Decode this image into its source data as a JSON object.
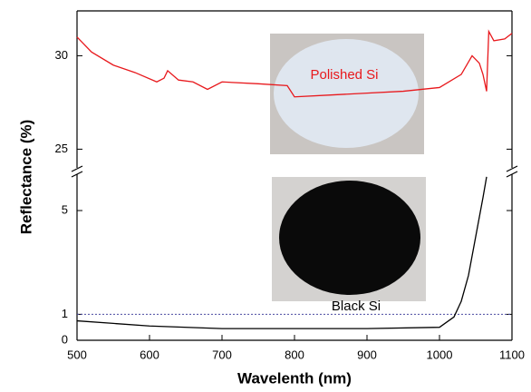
{
  "chart_data": [
    {
      "type": "line",
      "ylim": [
        24,
        32.4
      ],
      "yticks": [
        25,
        30
      ],
      "annotation": "Polished Si",
      "series": [
        {
          "name": "Polished Si",
          "color": "#e8181c",
          "x": [
            500,
            520,
            550,
            580,
            610,
            620,
            625,
            640,
            660,
            680,
            700,
            750,
            790,
            800,
            850,
            900,
            950,
            1000,
            1030,
            1045,
            1055,
            1060,
            1065,
            1068,
            1075,
            1090,
            1100
          ],
          "values": [
            31,
            30.2,
            29.5,
            29.1,
            28.6,
            28.8,
            29.2,
            28.7,
            28.6,
            28.2,
            28.6,
            28.5,
            28.4,
            27.8,
            27.9,
            28.0,
            28.1,
            28.3,
            29.0,
            30.0,
            29.6,
            29.0,
            28.1,
            31.3,
            30.8,
            30.9,
            31.2
          ]
        }
      ]
    },
    {
      "type": "line",
      "xlabel": "Wavelenth (nm)",
      "ylabel": "Reflectance (%)",
      "xlim": [
        500,
        1100
      ],
      "xticks": [
        500,
        600,
        700,
        800,
        900,
        1000,
        1100
      ],
      "ylim": [
        0,
        6.4
      ],
      "yticks": [
        0,
        1,
        5
      ],
      "reference_line": 1,
      "annotation": "Black Si",
      "series": [
        {
          "name": "Black Si",
          "color": "#000000",
          "x": [
            500,
            550,
            600,
            700,
            800,
            900,
            1000,
            1020,
            1030,
            1040,
            1050,
            1060,
            1065
          ],
          "values": [
            0.75,
            0.65,
            0.55,
            0.45,
            0.45,
            0.45,
            0.5,
            0.9,
            1.5,
            2.5,
            4.0,
            5.5,
            6.3
          ]
        }
      ]
    }
  ]
}
